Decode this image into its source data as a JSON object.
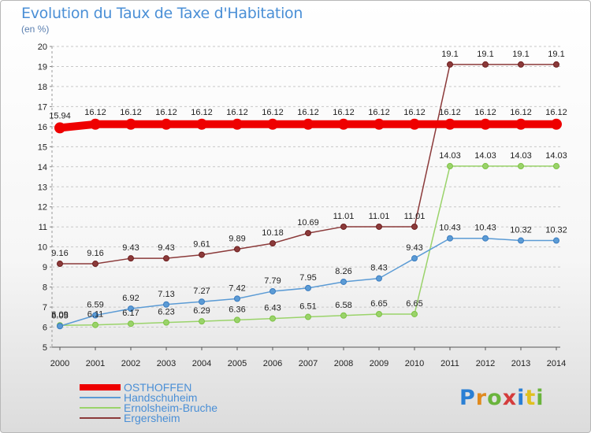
{
  "title": "Evolution du Taux de Taxe d'Habitation",
  "unit": "(en %)",
  "logo": {
    "text": "Proxiti",
    "colors": [
      "#2a7fd4",
      "#e08a1e",
      "#6ab43c",
      "#d43c3c",
      "#2a7fd4",
      "#e0c01e",
      "#6ab43c"
    ]
  },
  "chart_data": {
    "type": "line",
    "title": "Evolution du Taux de Taxe d'Habitation",
    "ylabel": "(en %)",
    "xlabel": "",
    "x": [
      "2000",
      "2001",
      "2002",
      "2003",
      "2004",
      "2005",
      "2006",
      "2007",
      "2008",
      "2009",
      "2010",
      "2011",
      "2012",
      "2013",
      "2014"
    ],
    "ylim": [
      5,
      20
    ],
    "yticks": [
      5,
      6,
      7,
      8,
      9,
      10,
      11,
      12,
      13,
      14,
      15,
      16,
      17,
      18,
      19,
      20
    ],
    "grid": "horizontal dashed",
    "legend_position": "bottom-left",
    "series": [
      {
        "name": "OSTHOFFEN",
        "color": "#ee0000",
        "style": "thick",
        "values": [
          15.94,
          16.12,
          16.12,
          16.12,
          16.12,
          16.12,
          16.12,
          16.12,
          16.12,
          16.12,
          16.12,
          16.12,
          16.12,
          16.12,
          16.12
        ],
        "labels": [
          "15.94",
          "16.12",
          "16.12",
          "16.12",
          "16.12",
          "16.12",
          "16.12",
          "16.12",
          "16.12",
          "16.12",
          "16.12",
          "16.12",
          "16.12",
          "16.12",
          "16.12"
        ]
      },
      {
        "name": "Handschuheim",
        "color": "#5b9bd5",
        "marker": "#3a7cc0",
        "style": "thin",
        "values": [
          6.05,
          6.59,
          6.92,
          7.13,
          7.27,
          7.42,
          7.79,
          7.95,
          8.26,
          8.43,
          9.43,
          10.43,
          10.43,
          10.32,
          10.32
        ],
        "labels": [
          "6.05",
          "6.59",
          "6.92",
          "7.13",
          "7.27",
          "7.42",
          "7.79",
          "7.95",
          "8.26",
          "8.43",
          "9.43",
          "10.43",
          "10.43",
          "10.32",
          "10.32"
        ]
      },
      {
        "name": "Ernolsheim-Bruche",
        "color": "#9ad36a",
        "marker": "#7cc243",
        "style": "thin",
        "values": [
          6.09,
          6.11,
          6.17,
          6.23,
          6.29,
          6.36,
          6.43,
          6.51,
          6.58,
          6.65,
          6.65,
          14.03,
          14.03,
          14.03,
          14.03
        ],
        "labels": [
          "6.09",
          "6.11",
          "6.17",
          "6.23",
          "6.29",
          "6.36",
          "6.43",
          "6.51",
          "6.58",
          "6.65",
          "6.65",
          "14.03",
          "14.03",
          "14.03",
          "14.03"
        ]
      },
      {
        "name": "Ergersheim",
        "color": "#8b3a3a",
        "marker": "#6e1f1f",
        "style": "thin",
        "values": [
          9.16,
          9.16,
          9.43,
          9.43,
          9.61,
          9.89,
          10.18,
          10.69,
          11.01,
          11.01,
          11.01,
          19.1,
          19.1,
          19.1,
          19.1
        ],
        "labels": [
          "9.16",
          "9.16",
          "9.43",
          "9.43",
          "9.61",
          "9.89",
          "10.18",
          "10.69",
          "11.01",
          "11.01",
          "11.01",
          "19.1",
          "19.1",
          "19.1",
          "19.1"
        ]
      }
    ]
  }
}
